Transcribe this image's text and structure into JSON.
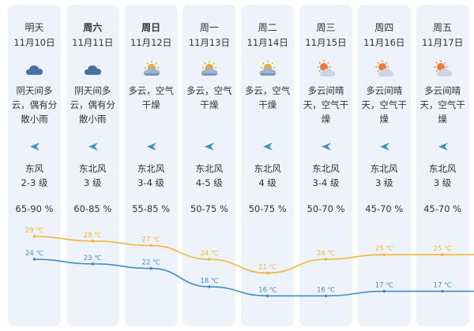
{
  "days": [
    {
      "day": "明天",
      "bold": false,
      "date": "11月10日",
      "icon": "cloudy-icon",
      "desc": [
        "阴天间多",
        "云，偶有分",
        "散小雨"
      ],
      "wind_dir": "东风",
      "wind_level": "2-3 级",
      "humidity": "65-90 %",
      "high": "29 ℃",
      "low": "24 ℃"
    },
    {
      "day": "周六",
      "bold": true,
      "date": "11月11日",
      "icon": "cloudy-icon",
      "desc": [
        "阴天间多",
        "云，偶有分",
        "散小雨"
      ],
      "wind_dir": "东北风",
      "wind_level": "3 级",
      "humidity": "60-85 %",
      "high": "28 ℃",
      "low": "23 ℃"
    },
    {
      "day": "周日",
      "bold": true,
      "date": "11月12日",
      "icon": "partly-cloudy-icon",
      "desc": [
        "多云，空气",
        "干燥"
      ],
      "wind_dir": "东北风",
      "wind_level": "3-4 级",
      "humidity": "55-85 %",
      "high": "27 ℃",
      "low": "22 ℃"
    },
    {
      "day": "周一",
      "bold": false,
      "date": "11月13日",
      "icon": "partly-cloudy-icon",
      "desc": [
        "多云，空气",
        "干燥"
      ],
      "wind_dir": "东北风",
      "wind_level": "4-5 级",
      "humidity": "50-75 %",
      "high": "24 ℃",
      "low": "18 ℃"
    },
    {
      "day": "周二",
      "bold": false,
      "date": "11月14日",
      "icon": "partly-cloudy-icon",
      "desc": [
        "多云，空气",
        "干燥"
      ],
      "wind_dir": "东北风",
      "wind_level": "4 级",
      "humidity": "50-75 %",
      "high": "21 ℃",
      "low": "16 ℃"
    },
    {
      "day": "周三",
      "bold": false,
      "date": "11月15日",
      "icon": "sunny-cloudy-icon",
      "desc": [
        "多云间晴",
        "天，空气干",
        "燥"
      ],
      "wind_dir": "东北风",
      "wind_level": "3-4 级",
      "humidity": "50-70 %",
      "high": "24 ℃",
      "low": "16 ℃"
    },
    {
      "day": "周四",
      "bold": false,
      "date": "11月16日",
      "icon": "sunny-cloudy-icon",
      "desc": [
        "多云间晴",
        "天，空气干",
        "燥"
      ],
      "wind_dir": "东北风",
      "wind_level": "3 级",
      "humidity": "45-70 %",
      "high": "25 ℃",
      "low": "17 ℃"
    },
    {
      "day": "周五",
      "bold": false,
      "date": "11月17日",
      "icon": "sunny-cloudy-icon",
      "desc": [
        "多云间晴",
        "天，空气干",
        "燥"
      ],
      "wind_dir": "东北风",
      "wind_level": "3 级",
      "humidity": "45-70 %",
      "high": "25 ℃",
      "low": "17 ℃"
    }
  ],
  "chart_data": {
    "type": "line",
    "categories": [
      "11月10日",
      "11月11日",
      "11月12日",
      "11月13日",
      "11月14日",
      "11月15日",
      "11月16日",
      "11月17日"
    ],
    "series": [
      {
        "values": [
          29,
          28,
          27,
          24,
          21,
          24,
          25,
          25
        ],
        "color": "#f3b53f"
      },
      {
        "values": [
          24,
          23,
          22,
          18,
          16,
          16,
          17,
          17
        ],
        "color": "#3a8fc4"
      }
    ],
    "unit": "℃"
  },
  "colors": {
    "card": "#eef3fa",
    "high_line": "#f3b53f",
    "low_line": "#3a8fc4",
    "icon_cloud": "#4a6fa5",
    "icon_sun": "#f5a623",
    "arrow": "#3a8fc4"
  }
}
